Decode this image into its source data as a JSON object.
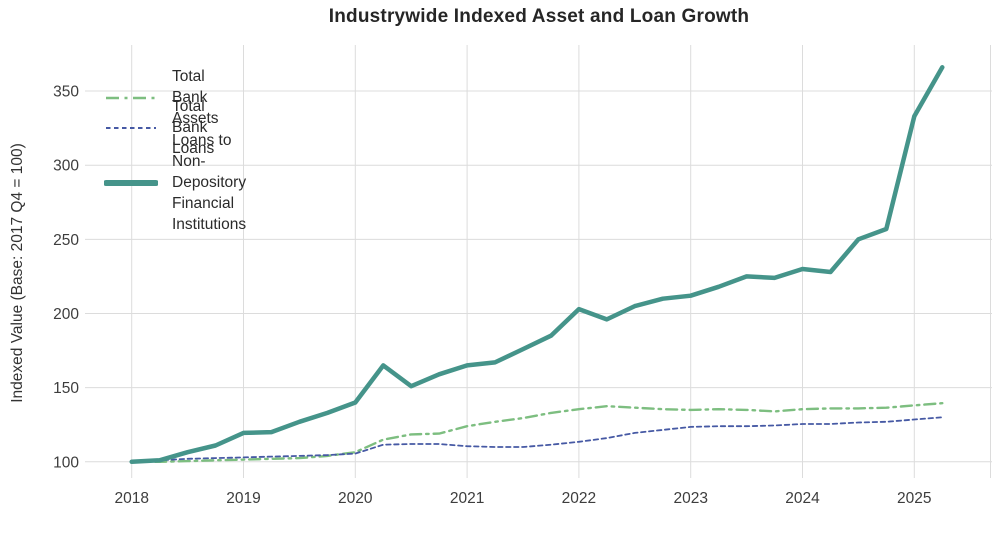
{
  "title": "Industrywide Indexed Asset and Loan Growth",
  "y_axis_label": "Indexed Value (Base: 2017 Q4 = 100)",
  "colors": {
    "assets_green": "#7dbe80",
    "loans_blue": "#4659a4",
    "ndfi_teal": "#45948a",
    "grid": "#dcdcdc",
    "tick_text": "#3d3d3d",
    "title_text": "#262626"
  },
  "legend": [
    {
      "label": "Total Bank Assets",
      "series": "assets",
      "style": "dashdot"
    },
    {
      "label": "Total Bank Loans",
      "series": "loans",
      "style": "dashed"
    },
    {
      "label": "Loans to Non-Depository\nFinancial Institutions",
      "series": "ndfi",
      "style": "solid"
    }
  ],
  "chart_data": {
    "type": "line",
    "title": "Industrywide Indexed Asset and Loan Growth",
    "xlabel": "",
    "ylabel": "Indexed Value (Base: 2017 Q4 = 100)",
    "grid": true,
    "legend_position": "upper left",
    "x_ticks": [
      2018,
      2019,
      2020,
      2021,
      2022,
      2023,
      2024,
      2025
    ],
    "y_ticks": [
      100,
      150,
      200,
      250,
      300,
      350
    ],
    "xlim": [
      2017.58,
      2025.7
    ],
    "ylim": [
      89,
      381
    ],
    "x": [
      2018.0,
      2018.25,
      2018.5,
      2018.75,
      2019.0,
      2019.25,
      2019.5,
      2019.75,
      2020.0,
      2020.25,
      2020.5,
      2020.75,
      2021.0,
      2021.25,
      2021.5,
      2021.75,
      2022.0,
      2022.25,
      2022.5,
      2022.75,
      2023.0,
      2023.25,
      2023.5,
      2023.75,
      2024.0,
      2024.25,
      2024.5,
      2024.75,
      2025.0,
      2025.25
    ],
    "series": [
      {
        "name": "Total Bank Assets",
        "key": "assets",
        "style": "dashdot",
        "width": 2.4,
        "values": [
          100,
          100,
          100.5,
          101,
          101.5,
          102,
          102.5,
          104,
          106.5,
          115,
          118.5,
          119,
          124,
          127,
          129.5,
          133,
          135.5,
          137.5,
          136.5,
          135.5,
          135,
          135.5,
          135,
          134,
          135.5,
          136,
          136,
          136.5,
          138,
          139.5
        ]
      },
      {
        "name": "Total Bank Loans",
        "key": "loans",
        "style": "dashed",
        "width": 1.8,
        "values": [
          100,
          101,
          102,
          102.5,
          103,
          103.5,
          104,
          104.5,
          105.5,
          111.5,
          112,
          112,
          110.5,
          110,
          110,
          111.5,
          113.5,
          116,
          119.5,
          121.5,
          123.5,
          124,
          124,
          124.5,
          125.5,
          125.5,
          126.5,
          127,
          128.5,
          130
        ]
      },
      {
        "name": "Loans to Non-Depository Financial Institutions",
        "key": "ndfi",
        "style": "solid",
        "width": 4.5,
        "values": [
          100,
          101,
          106.5,
          111,
          119.5,
          120,
          127,
          133,
          140,
          165,
          151,
          159,
          165,
          167,
          176,
          185,
          203,
          196,
          205,
          210,
          212,
          218,
          225,
          224,
          230,
          228,
          250,
          257,
          333,
          366
        ]
      }
    ]
  }
}
